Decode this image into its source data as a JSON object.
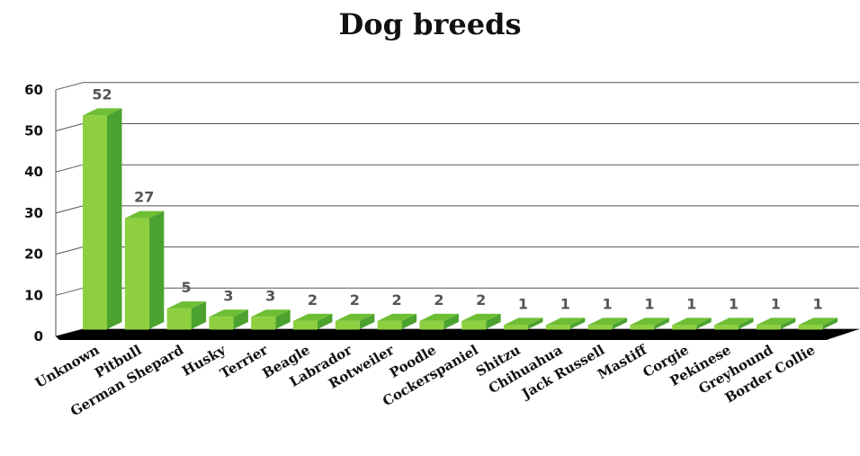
{
  "chart_data": {
    "type": "bar",
    "title": "Dog breeds",
    "xlabel": "",
    "ylabel": "",
    "ylim": [
      0,
      60
    ],
    "yticks": [
      0,
      10,
      20,
      30,
      40,
      50,
      60
    ],
    "grid": true,
    "legend": "none",
    "style": "3d-column",
    "categories": [
      "Unknown",
      "Pitbull",
      "German Shepard",
      "Husky",
      "Terrier",
      "Beagle",
      "Labrador",
      "Rotweiler",
      "Poodle",
      "Cockerspaniel",
      "Shitzu",
      "Chihuahua",
      "Jack Russell",
      "Mastiff",
      "Corgie",
      "Pekinese",
      "Greyhound",
      "Border Collie"
    ],
    "values": [
      52,
      27,
      5,
      3,
      3,
      2,
      2,
      2,
      2,
      2,
      1,
      1,
      1,
      1,
      1,
      1,
      1,
      1
    ],
    "colors": {
      "bar_front": "#8dcf3f",
      "bar_side": "#4ca22f",
      "bar_top": "#6fbf35",
      "floor": "#000000",
      "grid": "#555555",
      "data_label": "#555555"
    }
  }
}
